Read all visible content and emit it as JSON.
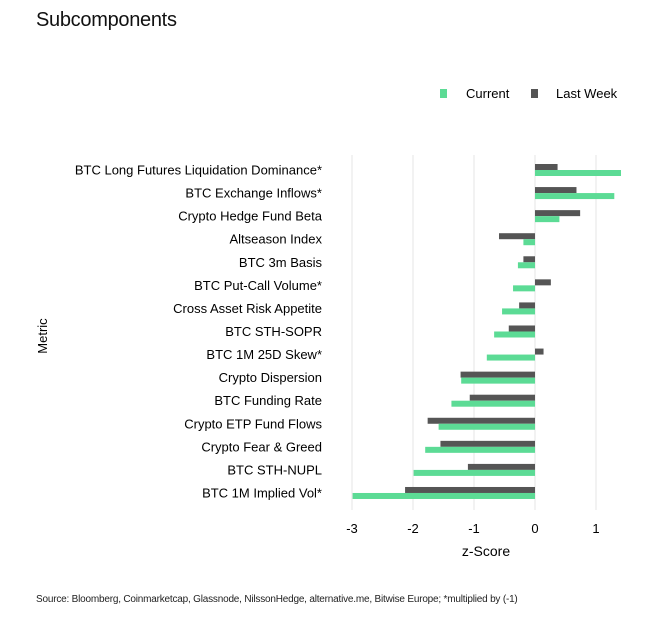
{
  "title": "Subcomponents",
  "source": "Source: Bloomberg, Coinmarketcap, Glassnode, NilssonHedge, alternative.me, Bitwise Europe; *multiplied by (-1)",
  "colors": {
    "current": "#5cdb95",
    "last_week": "#555555",
    "grid": "#e4e4e4"
  },
  "chart_data": {
    "type": "bar",
    "orientation": "horizontal",
    "title": "Subcomponents",
    "xlabel": "z-Score",
    "ylabel": "Metric",
    "xlim": [
      -3,
      1.5
    ],
    "xticks": [
      -3,
      -2,
      -1,
      0,
      1
    ],
    "xtick_labels": [
      "-3",
      "-2",
      "-1",
      "0",
      "1"
    ],
    "grid": true,
    "legend_position": "top-right",
    "categories": [
      "BTC Long Futures Liquidation Dominance*",
      "BTC Exchange Inflows*",
      "Crypto Hedge Fund Beta",
      "Altseason Index",
      "BTC 3m Basis",
      "BTC Put-Call Volume*",
      "Cross Asset Risk Appetite",
      "BTC STH-SOPR",
      "BTC 1M 25D Skew*",
      "Crypto Dispersion",
      "BTC Funding Rate",
      "Crypto ETP Fund Flows",
      "Crypto Fear & Greed",
      "BTC STH-NUPL",
      "BTC 1M Implied Vol*"
    ],
    "series": [
      {
        "name": "Current",
        "values": [
          1.41,
          1.3,
          0.4,
          -0.19,
          -0.28,
          -0.36,
          -0.54,
          -0.67,
          -0.79,
          -1.21,
          -1.37,
          -1.58,
          -1.8,
          -1.99,
          -2.99
        ]
      },
      {
        "name": "Last Week",
        "values": [
          0.37,
          0.68,
          0.74,
          -0.59,
          -0.19,
          0.26,
          -0.26,
          -0.43,
          0.14,
          -1.22,
          -1.07,
          -1.76,
          -1.55,
          -1.1,
          -2.13
        ]
      }
    ]
  }
}
